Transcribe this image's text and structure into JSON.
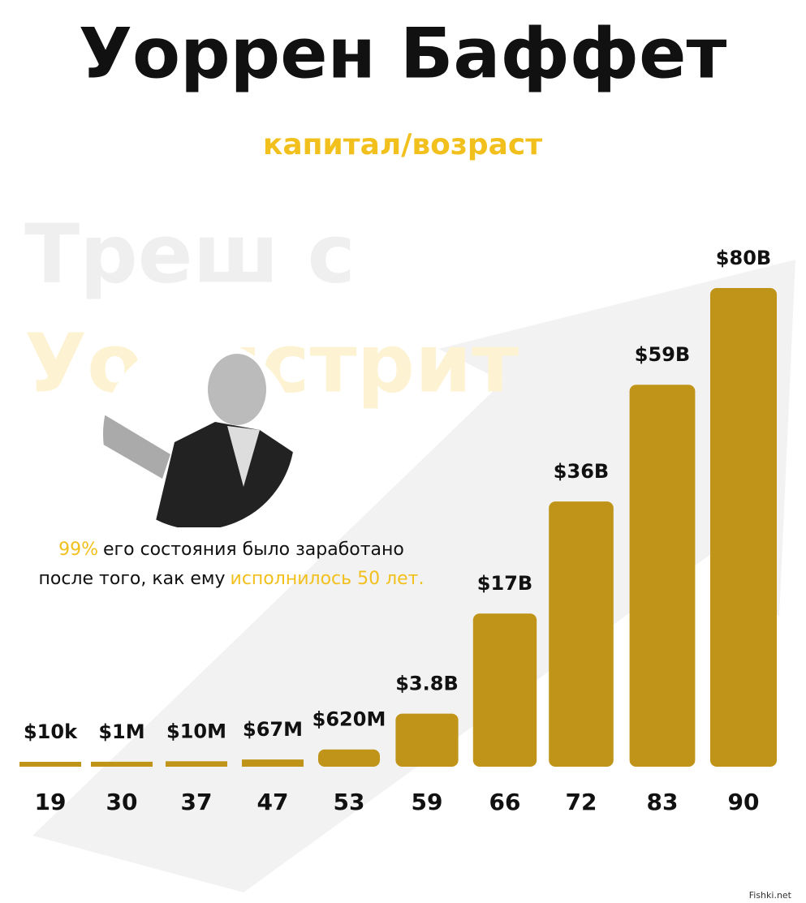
{
  "chart_data": {
    "type": "bar",
    "title": "Уоррен Баффет",
    "subtitle": "капитал/возраст",
    "watermark": [
      "Треш с",
      "Уоллстрит"
    ],
    "annotation": [
      "99%",
      "его состояния было заработано",
      "после того, как ему",
      "исполнилось 50 лет."
    ],
    "source": "Fishki.net",
    "categories": [
      "19",
      "30",
      "37",
      "47",
      "53",
      "59",
      "66",
      "72",
      "83",
      "90"
    ],
    "values": [
      10000,
      1000000,
      10000000,
      67000000,
      620000000,
      3800000000,
      17000000000,
      36000000000,
      59000000000,
      80000000000
    ],
    "value_labels": [
      "$10k",
      "$1M",
      "$10M",
      "$67M",
      "$620M",
      "$3.8B",
      "$17B",
      "$36B",
      "$59B",
      "$80B"
    ],
    "color": "#bf9418"
  }
}
